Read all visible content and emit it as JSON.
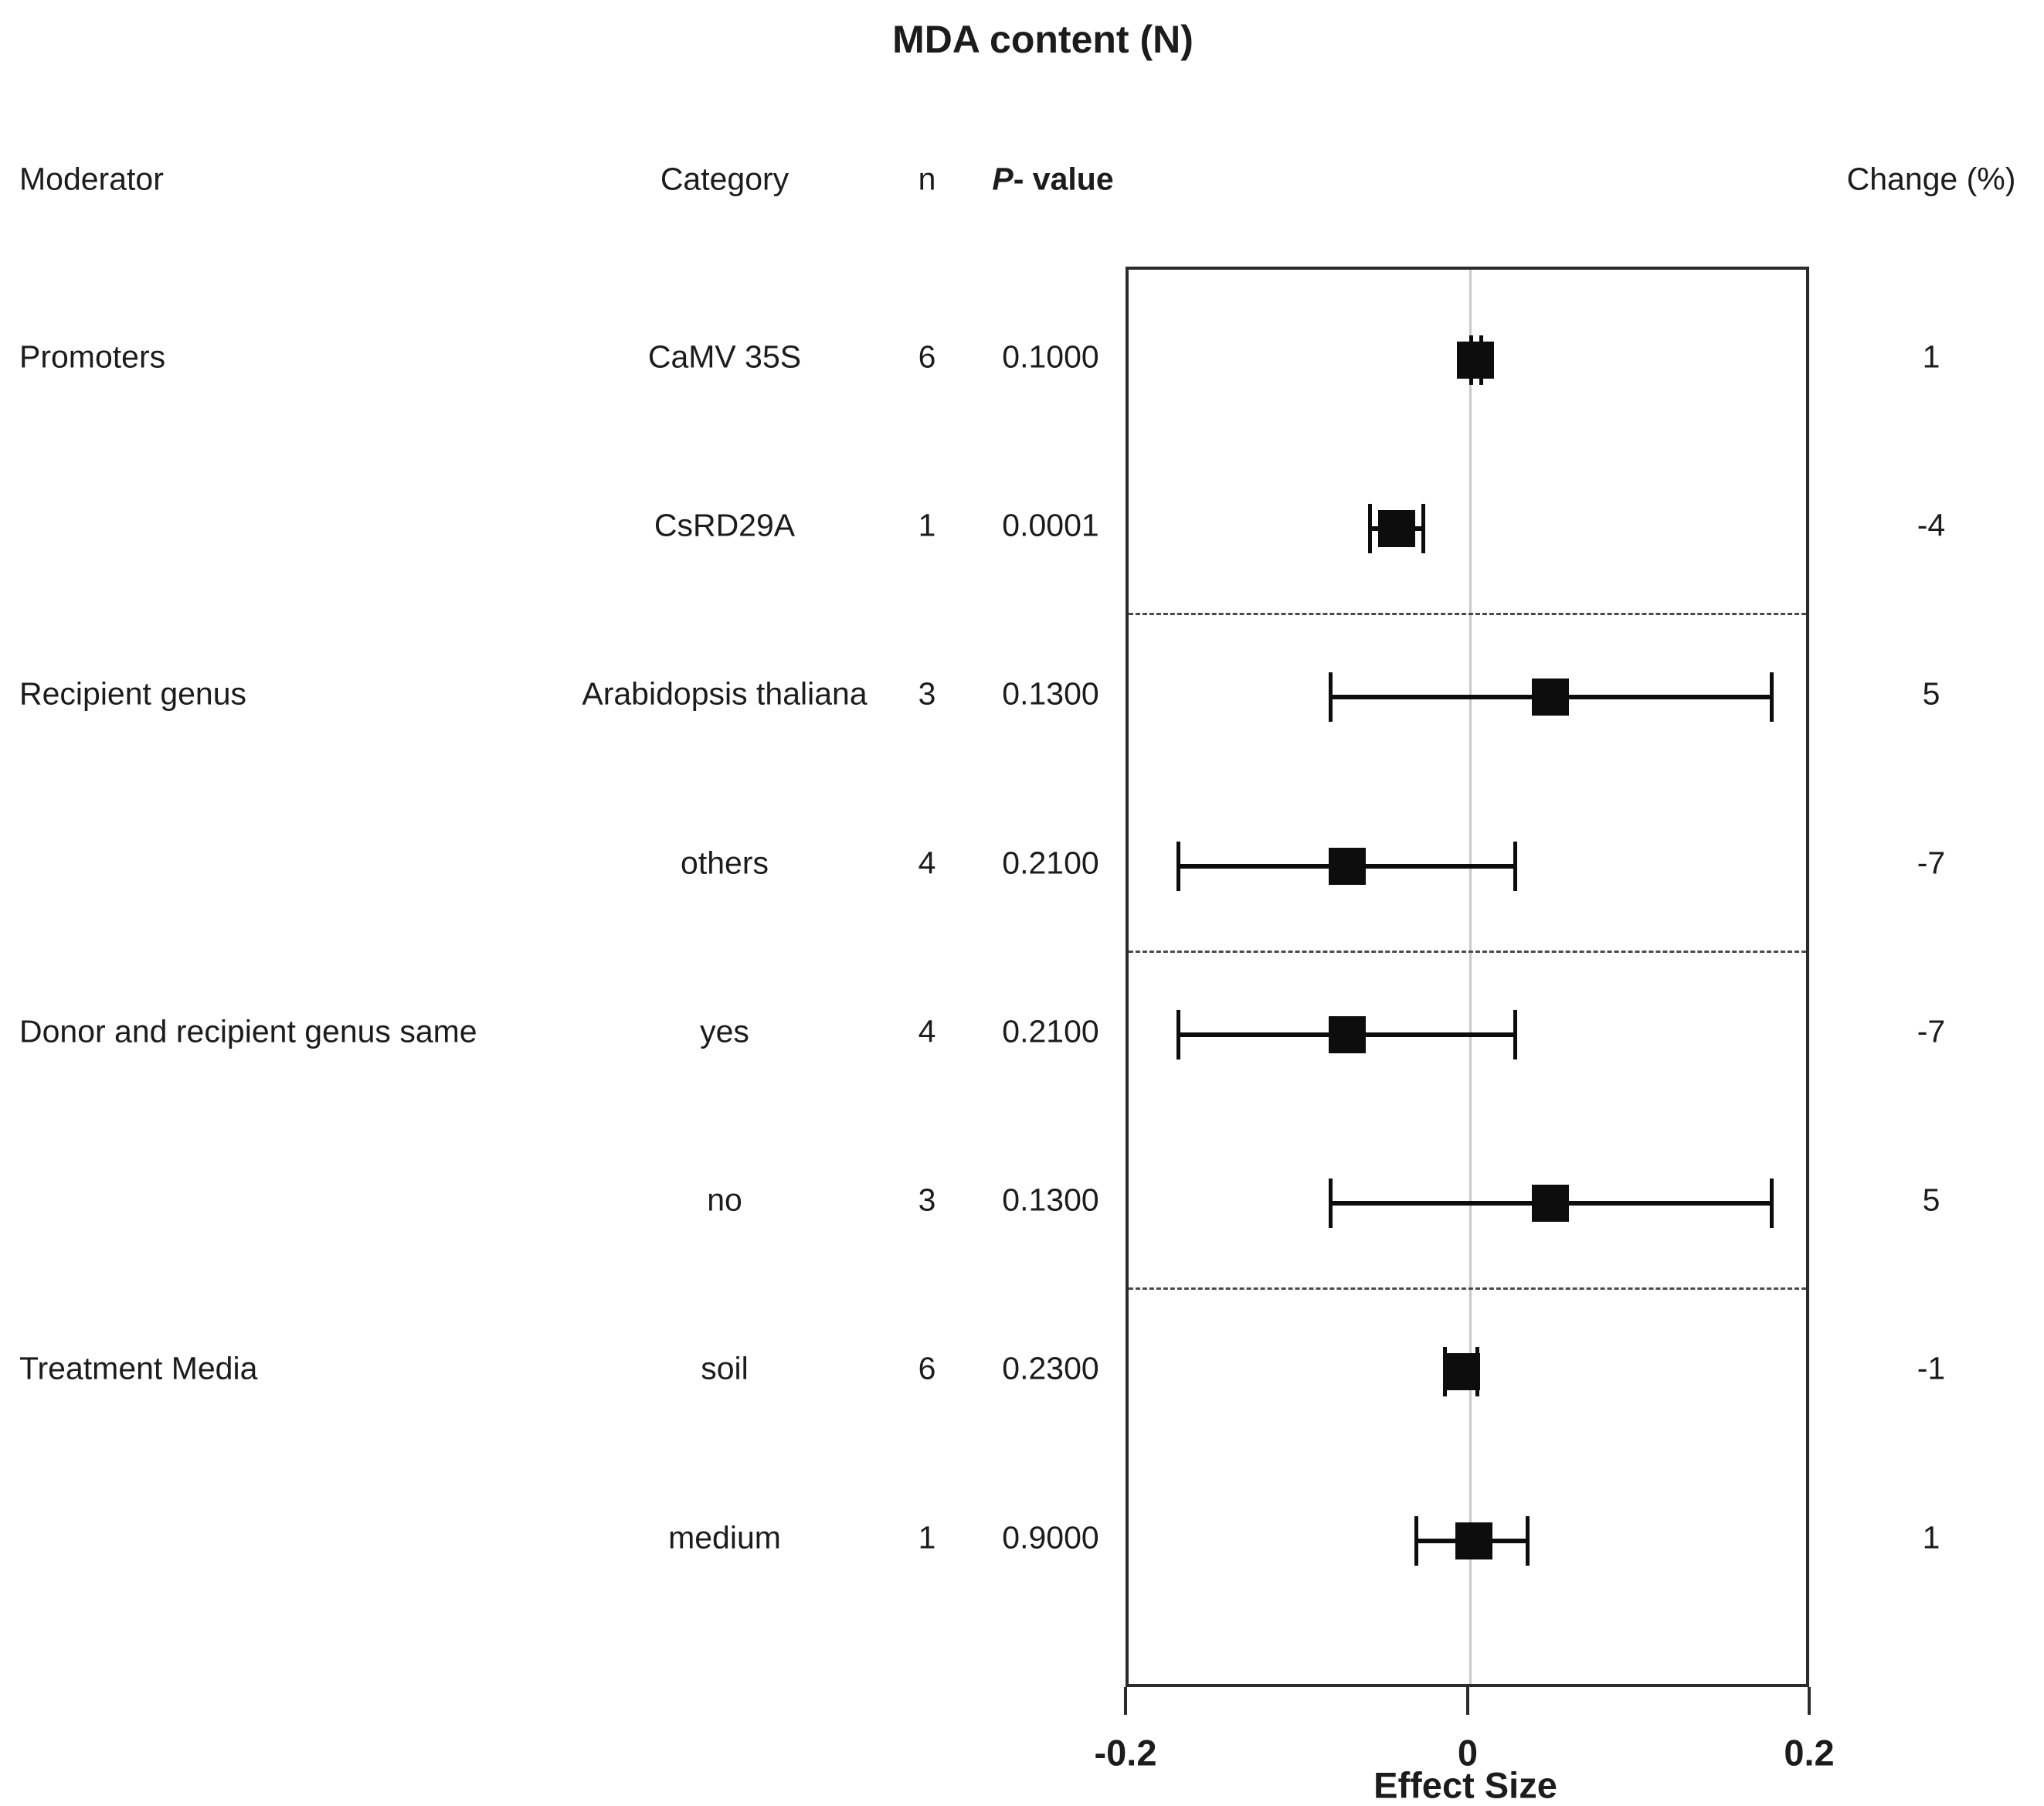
{
  "figure": {
    "title": "MDA content (N)"
  },
  "chart_data": {
    "type": "forest",
    "title": "MDA content (N)",
    "xlabel": "Effect Size",
    "xlim": [
      -0.2,
      0.2
    ],
    "x_ticks": [
      -0.2,
      0,
      0.2
    ],
    "x_tick_labels": [
      "-0.2",
      "0",
      "0.2"
    ],
    "zero_reference_line_x": 0,
    "grid": "off",
    "columns": [
      "Moderator",
      "Category",
      "n",
      "P- value",
      "Change (%)"
    ],
    "p_value_header": {
      "italic": "P",
      "rest": "- value"
    },
    "rows": [
      {
        "moderator": "Promoters",
        "category": "CaMV 35S",
        "n": "6",
        "p_value": "0.1000",
        "effect": 0.003,
        "ci_low": 0.0,
        "ci_high": 0.006,
        "change_pct": "1"
      },
      {
        "moderator": "",
        "category": "CsRD29A",
        "n": "1",
        "p_value": "0.0001",
        "effect": -0.043,
        "ci_low": -0.059,
        "ci_high": -0.028,
        "change_pct": "-4"
      },
      {
        "moderator": "Recipient genus",
        "category": "Arabidopsis thaliana",
        "n": "3",
        "p_value": "0.1300",
        "effect": 0.047,
        "ci_low": -0.082,
        "ci_high": 0.176,
        "change_pct": "5"
      },
      {
        "moderator": "",
        "category": "others",
        "n": "4",
        "p_value": "0.2100",
        "effect": -0.072,
        "ci_low": -0.171,
        "ci_high": 0.026,
        "change_pct": "-7"
      },
      {
        "moderator": "Donor and recipient genus same",
        "category": "yes",
        "n": "4",
        "p_value": "0.2100",
        "effect": -0.072,
        "ci_low": -0.171,
        "ci_high": 0.026,
        "change_pct": "-7"
      },
      {
        "moderator": "",
        "category": "no",
        "n": "3",
        "p_value": "0.1300",
        "effect": 0.047,
        "ci_low": -0.082,
        "ci_high": 0.176,
        "change_pct": "5"
      },
      {
        "moderator": "Treatment Media",
        "category": "soil",
        "n": "6",
        "p_value": "0.2300",
        "effect": -0.005,
        "ci_low": -0.015,
        "ci_high": 0.004,
        "change_pct": "-1"
      },
      {
        "moderator": "",
        "category": "medium",
        "n": "1",
        "p_value": "0.9000",
        "effect": 0.002,
        "ci_low": -0.032,
        "ci_high": 0.033,
        "change_pct": "1"
      }
    ],
    "group_separators_after_rows": [
      2,
      4,
      6
    ]
  }
}
